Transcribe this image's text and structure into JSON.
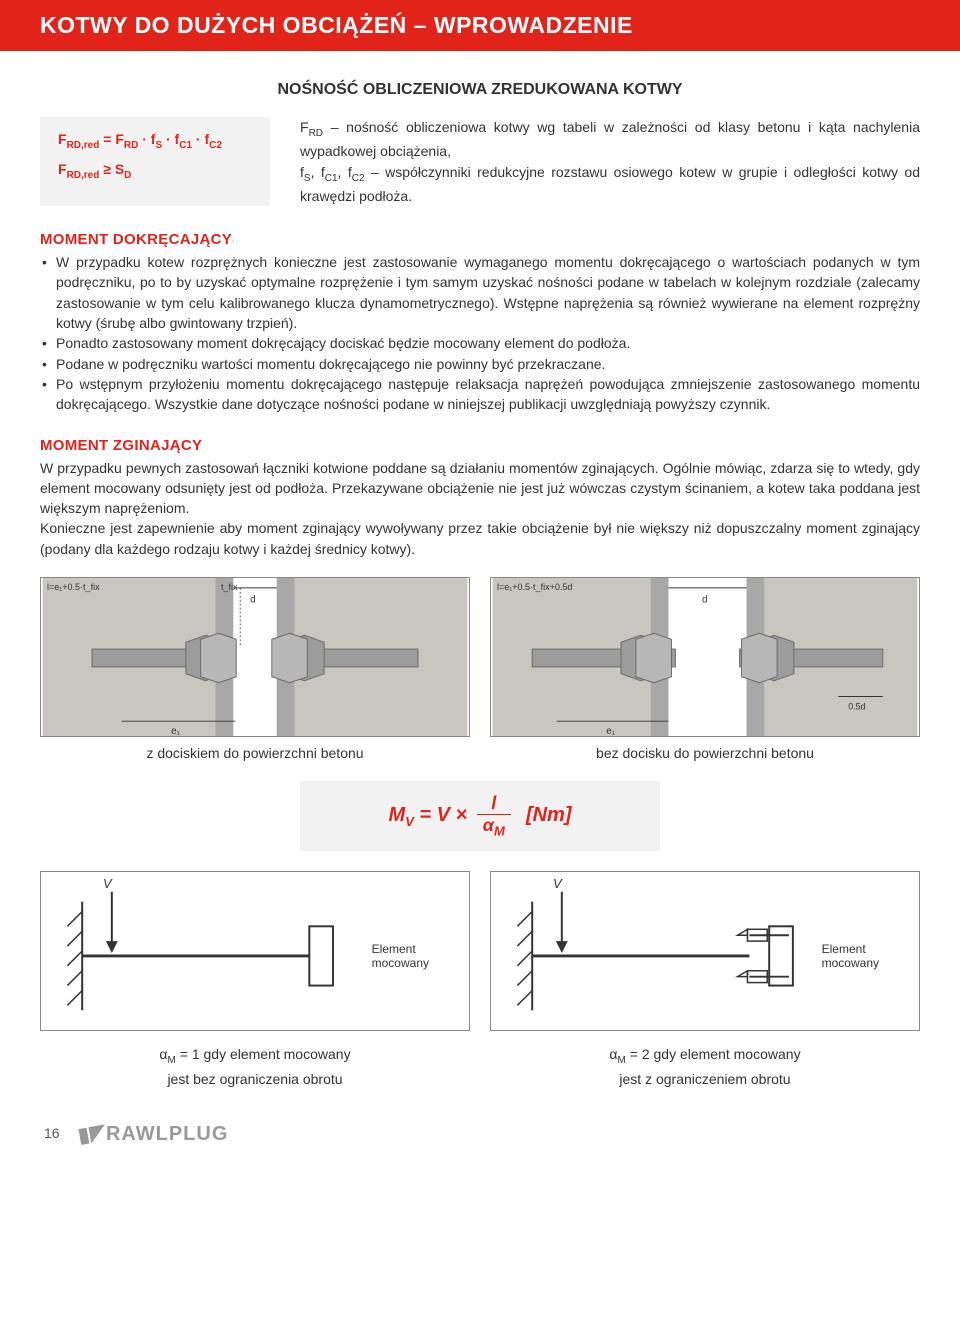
{
  "page_title": "KOTWY DO DUŻYCH OBCIĄŻEŃ – WPROWADZENIE",
  "subtitle": "NOŚNOŚĆ OBLICZENIOWA ZREDUKOWANA KOTWY",
  "formula": {
    "line1_html": "F<sub>RD,red</sub> = F<sub>RD</sub> · f<sub>S</sub> · f<sub>C1</sub> · f<sub>C2</sub>",
    "line2_html": "F<sub>RD,red</sub> ≥ S<sub>D</sub>"
  },
  "formula_desc_html": "F<sub>RD</sub> – nośność obliczeniowa kotwy wg tabeli w zależności od klasy betonu i kąta nachylenia wypadkowej obciążenia,<br>f<sub>S</sub>, f<sub>C1</sub>, f<sub>C2</sub> – współczynniki redukcyjne rozstawu osiowego kotew w grupie i odległości kotwy od krawędzi podłoża.",
  "moment_dokrecajacy": {
    "heading": "MOMENT DOKRĘCAJĄCY",
    "bullets": [
      "W przypadku kotew rozprężnych konieczne jest zastosowanie wymaganego momentu dokręcającego o wartościach podanych w tym podręczniku, po to by uzyskać optymalne rozprężenie i tym samym uzyskać nośności podane w tabelach w kolejnym rozdziale (zalecamy zastosowanie w tym celu kalibrowanego klucza dynamometrycznego). Wstępne naprężenia są również wywierane na element rozprężny kotwy (śrubę albo gwintowany trzpień).",
      "Ponadto zastosowany moment dokręcający dociskać będzie mocowany element do podłoża.",
      "Podane w podręczniku wartości momentu dokręcającego nie powinny być przekraczane.",
      "Po wstępnym przyłożeniu momentu dokręcającego następuje relaksacja naprężeń powodująca zmniejszenie zastosowanego momentu dokręcającego. Wszystkie dane dotyczące nośności podane w niniejszej publikacji uwzględniają powyższy czynnik."
    ]
  },
  "moment_zginajacy": {
    "heading": "MOMENT ZGINAJĄCY",
    "text": "W przypadku pewnych zastosowań łączniki kotwione poddane są działaniu momentów zginających. Ogólnie mówiąc, zdarza się to wtedy, gdy element mocowany odsunięty jest od podłoża. Przekazywane obciążenie nie jest już wówczas czystym ścinaniem, a kotew taka poddana jest większym naprężeniom.\nKonieczne jest zapewnienie aby moment zginający wywoływany przez takie obciążenie był nie większy niż dopuszczalny moment zginający (podany dla każdego rodzaju kotwy i każdej średnicy kotwy)."
  },
  "diagram_labels": {
    "left_formula": "l=e₁+0.5·t_fix",
    "right_formula": "l=e₁+0.5·t_fix+0.5d",
    "tfix": "t_fix",
    "d": "d",
    "e1": "e₁",
    "half_d": "0.5d"
  },
  "captions": {
    "left": "z dociskiem do powierzchni betonu",
    "right": "bez docisku do powierzchni betonu"
  },
  "mv_formula": {
    "lhs": "M",
    "lhs_sub": "V",
    "eq": " = V ×",
    "frac_top": "l",
    "frac_bot": "α",
    "frac_bot_sub": "M",
    "unit": "[Nm]"
  },
  "schematic": {
    "v": "V",
    "element": "Element\nmocowany"
  },
  "alpha": {
    "left_line1_html": "α<sub>M</sub> = 1 gdy element mocowany",
    "left_line2": "jest bez ograniczenia obrotu",
    "right_line1_html": "α<sub>M</sub> = 2 gdy element mocowany",
    "right_line2": "jest z ograniczeniem obrotu"
  },
  "footer": {
    "page": "16",
    "logo": "RAWLPLUG"
  },
  "colors": {
    "brand_red": "#e2231a",
    "text": "#333333",
    "light_gray": "#f2f2f2",
    "border": "#888888",
    "footer_gray": "#999999"
  }
}
